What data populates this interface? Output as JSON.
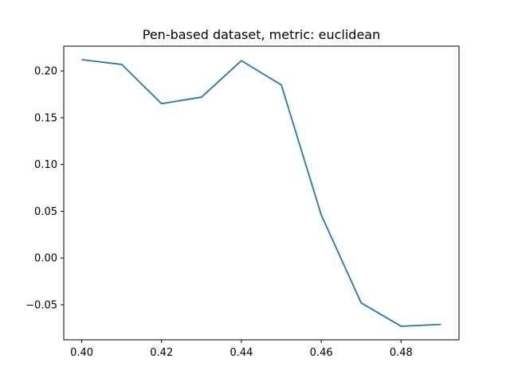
{
  "colors": {
    "series": "#1f77b4",
    "background": "#ffffff",
    "axis": "#000000"
  },
  "chart_data": {
    "type": "line",
    "title": "Pen-based dataset, metric: euclidean",
    "xlabel": "",
    "ylabel": "",
    "grid": false,
    "legend": "none",
    "xlim": [
      0.3955,
      0.4945
    ],
    "ylim": [
      -0.0875,
      0.2265
    ],
    "xticks": [
      0.4,
      0.42,
      0.44,
      0.46,
      0.48
    ],
    "xtick_labels": [
      "0.40",
      "0.42",
      "0.44",
      "0.46",
      "0.48"
    ],
    "yticks": [
      -0.05,
      0.0,
      0.05,
      0.1,
      0.15,
      0.2
    ],
    "ytick_labels": [
      "−0.05",
      "0.00",
      "0.05",
      "0.10",
      "0.15",
      "0.20"
    ],
    "series": [
      {
        "x": [
          0.4,
          0.41,
          0.42,
          0.43,
          0.44,
          0.45,
          0.46,
          0.47,
          0.48,
          0.49
        ],
        "y": [
          0.212,
          0.207,
          0.165,
          0.172,
          0.211,
          0.185,
          0.046,
          -0.048,
          -0.073,
          -0.071
        ]
      }
    ]
  }
}
